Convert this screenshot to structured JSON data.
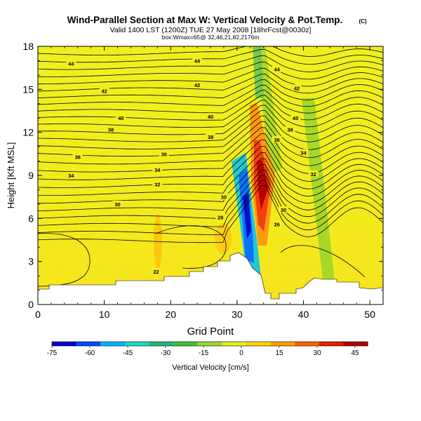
{
  "chart_data": {
    "type": "heatmap",
    "title": "Wind-Parallel Section at Max W: Vertical Velocity & Pot.Temp.",
    "title_mark": "(C)",
    "subtitle": "Valid 1400 LST (1200Z) TUE 27 May 2008 [18hrFcst@0030z]",
    "subtitle2": "box:Wmax=65@ 32,46,21,82,2176m",
    "xlabel": "Grid Point",
    "ylabel": "Height [Kft MSL]",
    "xlim": [
      0,
      52
    ],
    "ylim": [
      0,
      18
    ],
    "xticks": [
      0,
      10,
      20,
      30,
      40,
      50
    ],
    "yticks": [
      0,
      3,
      6,
      9,
      12,
      15,
      18
    ],
    "colorbar": {
      "label": "Vertical Velocity [cm/s]",
      "min": -75,
      "max": 50,
      "ticks": [
        -75,
        -60,
        -45,
        -30,
        -15,
        0,
        15,
        30,
        45
      ],
      "colors": [
        "#0000c8",
        "#0048ff",
        "#00b4ff",
        "#20d8c8",
        "#20b878",
        "#40c040",
        "#9ad830",
        "#e8f020",
        "#ffd400",
        "#ffa000",
        "#ff6000",
        "#e02000",
        "#b00000"
      ]
    },
    "contour_labels": [
      {
        "value": "44",
        "x": 5,
        "y": 16.8
      },
      {
        "value": "44",
        "x": 24,
        "y": 17.0
      },
      {
        "value": "44",
        "x": 36,
        "y": 16.4
      },
      {
        "value": "42",
        "x": 10,
        "y": 14.9
      },
      {
        "value": "42",
        "x": 24,
        "y": 15.3
      },
      {
        "value": "42",
        "x": 39,
        "y": 15.1
      },
      {
        "value": "40",
        "x": 12.5,
        "y": 13.0
      },
      {
        "value": "40",
        "x": 26,
        "y": 13.1
      },
      {
        "value": "40",
        "x": 38.8,
        "y": 13.0
      },
      {
        "value": "38",
        "x": 11,
        "y": 12.2
      },
      {
        "value": "38",
        "x": 26,
        "y": 11.7
      },
      {
        "value": "38",
        "x": 38,
        "y": 12.2
      },
      {
        "value": "36",
        "x": 6,
        "y": 10.3
      },
      {
        "value": "36",
        "x": 19,
        "y": 10.5
      },
      {
        "value": "36",
        "x": 36,
        "y": 11.5
      },
      {
        "value": "34",
        "x": 5,
        "y": 9.0
      },
      {
        "value": "34",
        "x": 18,
        "y": 9.4
      },
      {
        "value": "34",
        "x": 40,
        "y": 10.6
      },
      {
        "value": "32",
        "x": 18,
        "y": 8.4
      },
      {
        "value": "32",
        "x": 41.5,
        "y": 9.1
      },
      {
        "value": "30",
        "x": 12,
        "y": 7.0
      },
      {
        "value": "30",
        "x": 28,
        "y": 7.5
      },
      {
        "value": "30",
        "x": 37,
        "y": 6.6
      },
      {
        "value": "28",
        "x": 27.5,
        "y": 6.1
      },
      {
        "value": "26",
        "x": 36,
        "y": 5.6
      },
      {
        "value": "22",
        "x": 17.8,
        "y": 2.3
      }
    ]
  }
}
